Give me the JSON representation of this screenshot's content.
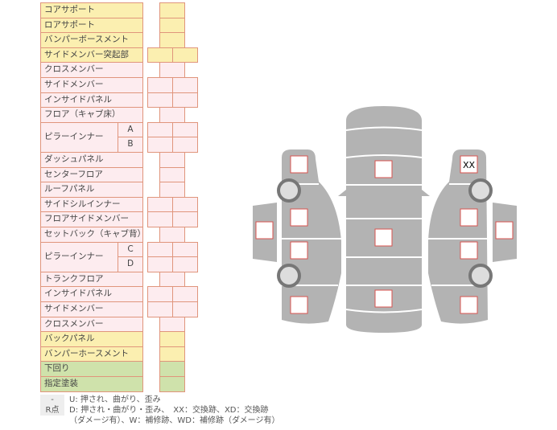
{
  "rows": [
    {
      "label": "コアサポート",
      "color": "yellow",
      "cells": 1
    },
    {
      "label": "ロアサポート",
      "color": "yellow",
      "cells": 1
    },
    {
      "label": "バンパーボースメント",
      "color": "yellow",
      "cells": 1
    },
    {
      "label": "サイドメンバー突起部",
      "color": "yellow",
      "cells": 2
    },
    {
      "label": "クロスメンバー",
      "color": "pink",
      "cells": 1
    },
    {
      "label": "サイドメンバー",
      "color": "pink",
      "cells": 2
    },
    {
      "label": "インサイドパネル",
      "color": "pink",
      "cells": 2
    },
    {
      "label": "フロア（キャブ床）",
      "color": "pink",
      "cells": 1
    },
    {
      "label": "ピラーインナー",
      "sub": "A",
      "color": "pink",
      "cells": 2,
      "span": true
    },
    {
      "label": "",
      "sub": "B",
      "color": "pink",
      "cells": 2
    },
    {
      "label": "ダッシュパネル",
      "color": "pink",
      "cells": 1
    },
    {
      "label": "センターフロア",
      "color": "pink",
      "cells": 1
    },
    {
      "label": "ルーフパネル",
      "color": "pink",
      "cells": 1
    },
    {
      "label": "サイドシルインナー",
      "color": "pink",
      "cells": 2
    },
    {
      "label": "フロアサイドメンバー",
      "color": "pink",
      "cells": 2
    },
    {
      "label": "セットバック（キャブ背）",
      "color": "pink",
      "cells": 1
    },
    {
      "label": "ピラーインナー",
      "sub": "C",
      "color": "pink",
      "cells": 2,
      "span": true
    },
    {
      "label": "",
      "sub": "D",
      "color": "pink",
      "cells": 2
    },
    {
      "label": "トランクフロア",
      "color": "pink",
      "cells": 1
    },
    {
      "label": "インサイドパネル",
      "color": "pink",
      "cells": 2
    },
    {
      "label": "サイドメンバー",
      "color": "pink",
      "cells": 2
    },
    {
      "label": "クロスメンバー",
      "color": "pink",
      "cells": 1
    },
    {
      "label": "バックパネル",
      "color": "yellow",
      "cells": 1
    },
    {
      "label": "バンパーホースメント",
      "color": "yellow",
      "cells": 1
    },
    {
      "label": "下回り",
      "color": "green",
      "cells": 1
    },
    {
      "label": "指定塗装",
      "color": "green",
      "cells": 1
    }
  ],
  "diagram": {
    "marked_label": "XX"
  },
  "legend": [
    {
      "key": "-",
      "text": "U: 押され、曲がり、歪み"
    },
    {
      "key": "R点",
      "text": "D: 押され・曲がり・歪み、　XX：交換跡、XD：交換跡"
    },
    {
      "key": "",
      "text": "（ダメージ有）、W：補修跡、WD：補修跡（ダメージ有）"
    }
  ],
  "colors": {
    "yellow": "#fbefb0",
    "pink": "#fdecef",
    "green": "#cfe2ab",
    "border": "#e0957c",
    "body": "#b3b3b3",
    "mark_border": "#d9534f"
  }
}
